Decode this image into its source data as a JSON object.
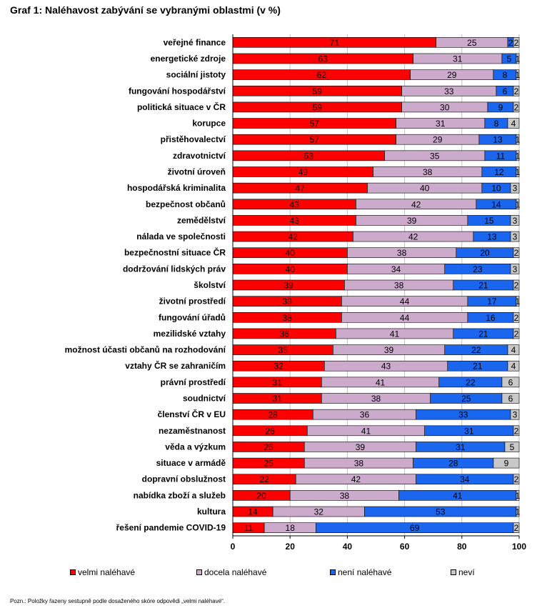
{
  "chart_data": {
    "type": "bar",
    "orientation": "horizontal",
    "stacked": true,
    "title": "Graf 1: Naléhavost zabývání se vybranými oblastmi (v %)",
    "categories": [
      "veřejné finance",
      "energetické zdroje",
      "sociální jistoty",
      "fungování hospodářství",
      "politická situace v ČR",
      "korupce",
      "přistěhovalectví",
      "zdravotnictví",
      "životní úroveň",
      "hospodářská kriminalita",
      "bezpečnost občanů",
      "zemědělství",
      "nálada ve společnosti",
      "bezpečnostní situace ČR",
      "dodržování lidských práv",
      "školství",
      "životní prostředí",
      "fungování úřadů",
      "mezilidské vztahy",
      "možnost účasti občanů na rozhodování",
      "vztahy ČR se zahraničím",
      "právní prostředí",
      "soudnictví",
      "členství ČR v EU",
      "nezaměstnanost",
      "věda a výzkum",
      "situace v armádě",
      "dopravní obslužnost",
      "nabídka zboží a služeb",
      "kultura",
      "řešení pandemie COVID-19"
    ],
    "series": [
      {
        "name": "velmi naléhavé",
        "color": "#ff0000",
        "values": [
          71,
          63,
          62,
          59,
          59,
          57,
          57,
          53,
          49,
          47,
          43,
          43,
          42,
          40,
          40,
          39,
          38,
          38,
          36,
          35,
          32,
          31,
          31,
          28,
          26,
          25,
          25,
          22,
          20,
          14,
          11
        ]
      },
      {
        "name": "docela naléhavé",
        "color": "#ccaacc",
        "values": [
          25,
          31,
          29,
          33,
          30,
          31,
          29,
          35,
          38,
          40,
          42,
          39,
          42,
          38,
          34,
          38,
          44,
          44,
          41,
          39,
          43,
          41,
          38,
          36,
          41,
          39,
          38,
          42,
          38,
          32,
          18
        ]
      },
      {
        "name": "není naléhavé",
        "color": "#1a66ee",
        "values": [
          2,
          5,
          8,
          6,
          9,
          8,
          13,
          11,
          12,
          10,
          14,
          15,
          13,
          20,
          23,
          21,
          17,
          16,
          21,
          22,
          21,
          22,
          25,
          33,
          31,
          31,
          28,
          34,
          41,
          53,
          69
        ]
      },
      {
        "name": "neví",
        "color": "#c8c8c8",
        "values": [
          2,
          1,
          1,
          2,
          2,
          4,
          1,
          1,
          1,
          3,
          1,
          3,
          3,
          2,
          3,
          2,
          1,
          2,
          2,
          4,
          4,
          6,
          6,
          3,
          2,
          5,
          9,
          2,
          1,
          1,
          2
        ]
      }
    ],
    "x_ticks": [
      "0",
      "20",
      "40",
      "60",
      "80",
      "100"
    ],
    "xlim": [
      0,
      100
    ],
    "grid": true,
    "legend_position": "bottom"
  },
  "footnote": "Pozn.: Položky řazeny sestupně podle dosaženého skóre odpovědi „velmi naléhavé“."
}
